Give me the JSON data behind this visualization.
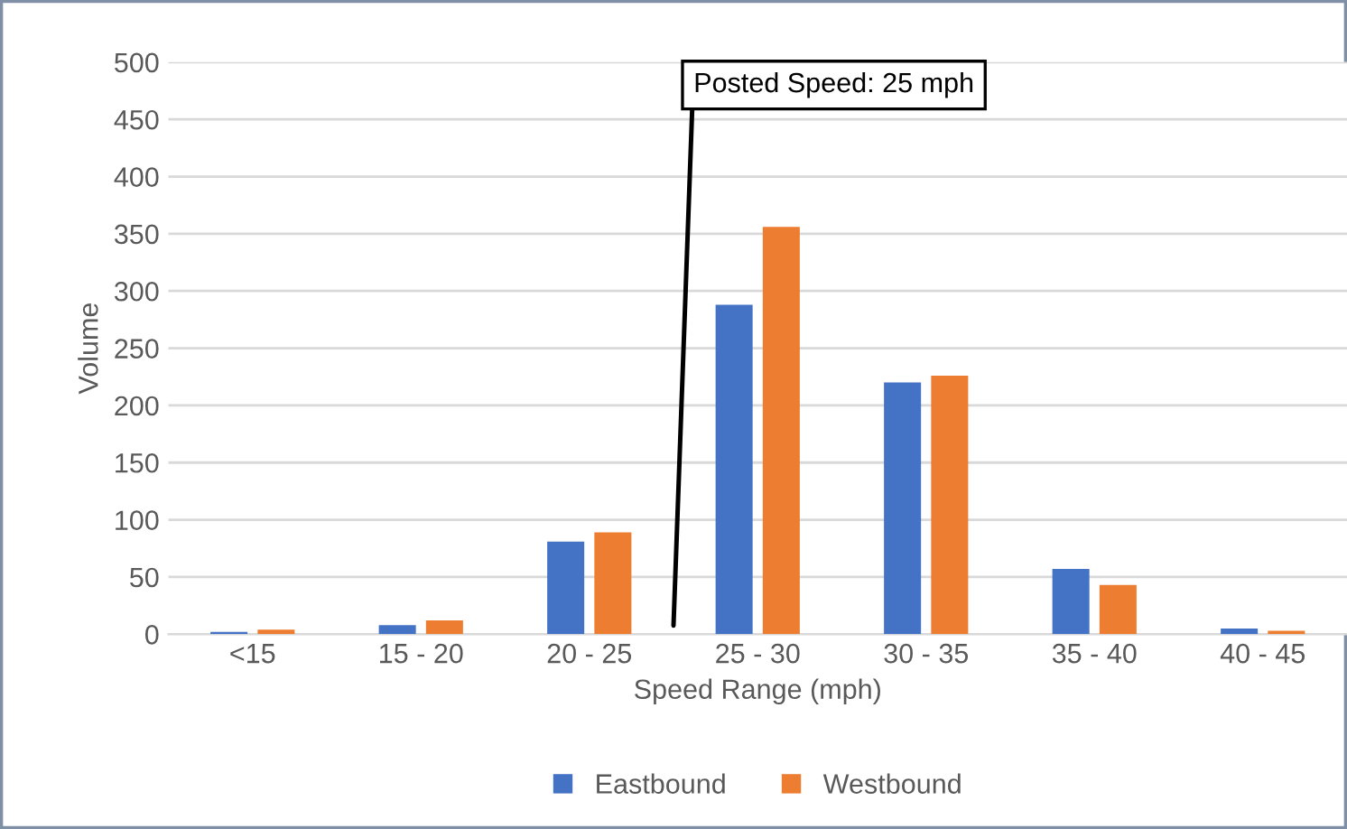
{
  "chart_data": {
    "type": "bar",
    "xlabel": "Speed Range (mph)",
    "ylabel": "Volume",
    "categories": [
      "<15",
      "15 - 20",
      "20 - 25",
      "25 - 30",
      "30 - 35",
      "35 - 40",
      "40 - 45"
    ],
    "series": [
      {
        "name": "Eastbound",
        "color": "#4472c4",
        "values": [
          2,
          8,
          81,
          288,
          220,
          57,
          5
        ]
      },
      {
        "name": "Westbound",
        "color": "#ed7d31",
        "values": [
          4,
          12,
          89,
          356,
          226,
          43,
          3
        ]
      }
    ],
    "ylim": [
      0,
      500
    ],
    "yticks": [
      0,
      50,
      100,
      150,
      200,
      250,
      300,
      350,
      400,
      450,
      500
    ],
    "grid": "y",
    "legend": "bottom",
    "annotations": [
      "Posted Speed: 25 mph"
    ]
  }
}
